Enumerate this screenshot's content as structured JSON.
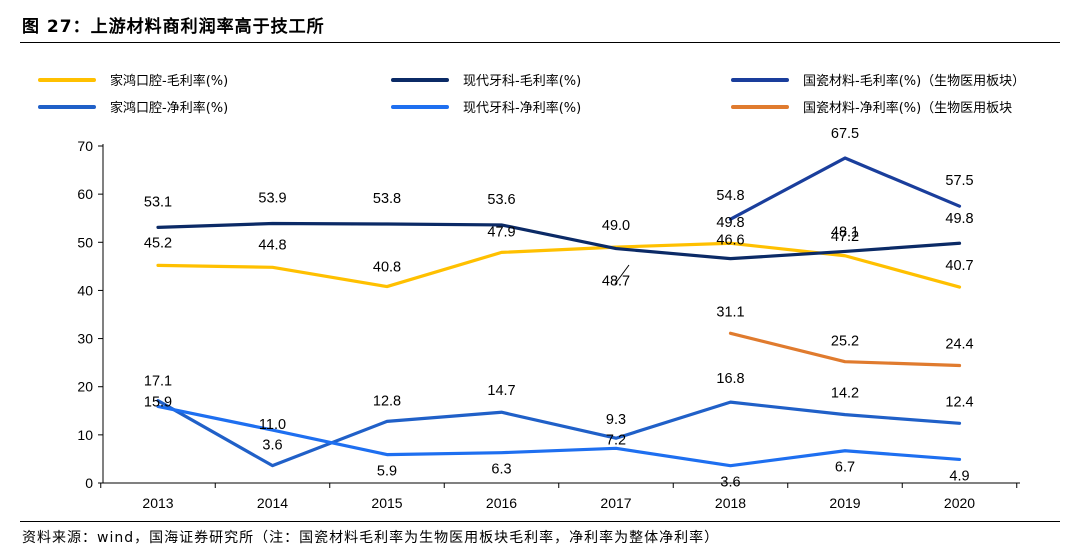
{
  "header": {
    "title": "图 27：上游材料商利润率高于技工所"
  },
  "footer": {
    "source": "资料来源：wind，国海证券研究所（注：国瓷材料毛利率为生物医用板块毛利率，净利率为整体净利率）"
  },
  "chart_data": {
    "type": "line",
    "categories": [
      "2013",
      "2014",
      "2015",
      "2016",
      "2017",
      "2018",
      "2019",
      "2020"
    ],
    "ylim": [
      0,
      70
    ],
    "yticks": [
      "0",
      "10",
      "20",
      "30",
      "40",
      "50",
      "60",
      "70"
    ],
    "grid": false,
    "legend_position": "top",
    "series": [
      {
        "name": "家鸿口腔-毛利率(%)",
        "color": "#FFC000",
        "values": [
          45.2,
          44.8,
          40.8,
          47.9,
          49.0,
          49.8,
          47.2,
          40.7
        ],
        "labels": [
          "45.2",
          "44.8",
          "40.8",
          "47.9",
          "49.0",
          "49.8",
          "47.2",
          "40.7"
        ]
      },
      {
        "name": "现代牙科-毛利率(%)",
        "color": "#0B2A66",
        "values": [
          53.1,
          53.9,
          53.8,
          53.6,
          48.7,
          46.6,
          48.1,
          49.8
        ],
        "labels": [
          "53.1",
          "53.9",
          "53.8",
          "53.6",
          "48.7",
          "46.6",
          "48.1",
          "49.8"
        ]
      },
      {
        "name": "国瓷材料-毛利率(%)（生物医用板块）",
        "color": "#1A3E9C",
        "values": [
          null,
          null,
          null,
          null,
          null,
          54.8,
          67.5,
          57.5
        ],
        "labels": [
          null,
          null,
          null,
          null,
          null,
          "54.8",
          "67.5",
          "57.5"
        ]
      },
      {
        "name": "家鸿口腔-净利率(%)",
        "color": "#2060C8",
        "values": [
          17.1,
          3.6,
          12.8,
          14.7,
          9.3,
          16.8,
          14.2,
          12.4
        ],
        "labels": [
          "17.1",
          "3.6",
          "12.8",
          "14.7",
          "9.3",
          "16.8",
          "14.2",
          "12.4"
        ]
      },
      {
        "name": "现代牙科-净利率(%)",
        "color": "#1E6FF0",
        "values": [
          15.9,
          11.0,
          5.9,
          6.3,
          7.2,
          3.6,
          6.7,
          4.9
        ],
        "labels": [
          "15.9",
          "11.0",
          "5.9",
          "6.3",
          "7.2",
          "3.6",
          "6.7",
          "4.9"
        ]
      },
      {
        "name": "国瓷材料-净利率(%)（生物医用板块",
        "color": "#E07B2E",
        "values": [
          null,
          null,
          null,
          null,
          null,
          31.1,
          25.2,
          24.4
        ],
        "labels": [
          null,
          null,
          null,
          null,
          null,
          "31.1",
          "25.2",
          "24.4"
        ]
      }
    ]
  }
}
